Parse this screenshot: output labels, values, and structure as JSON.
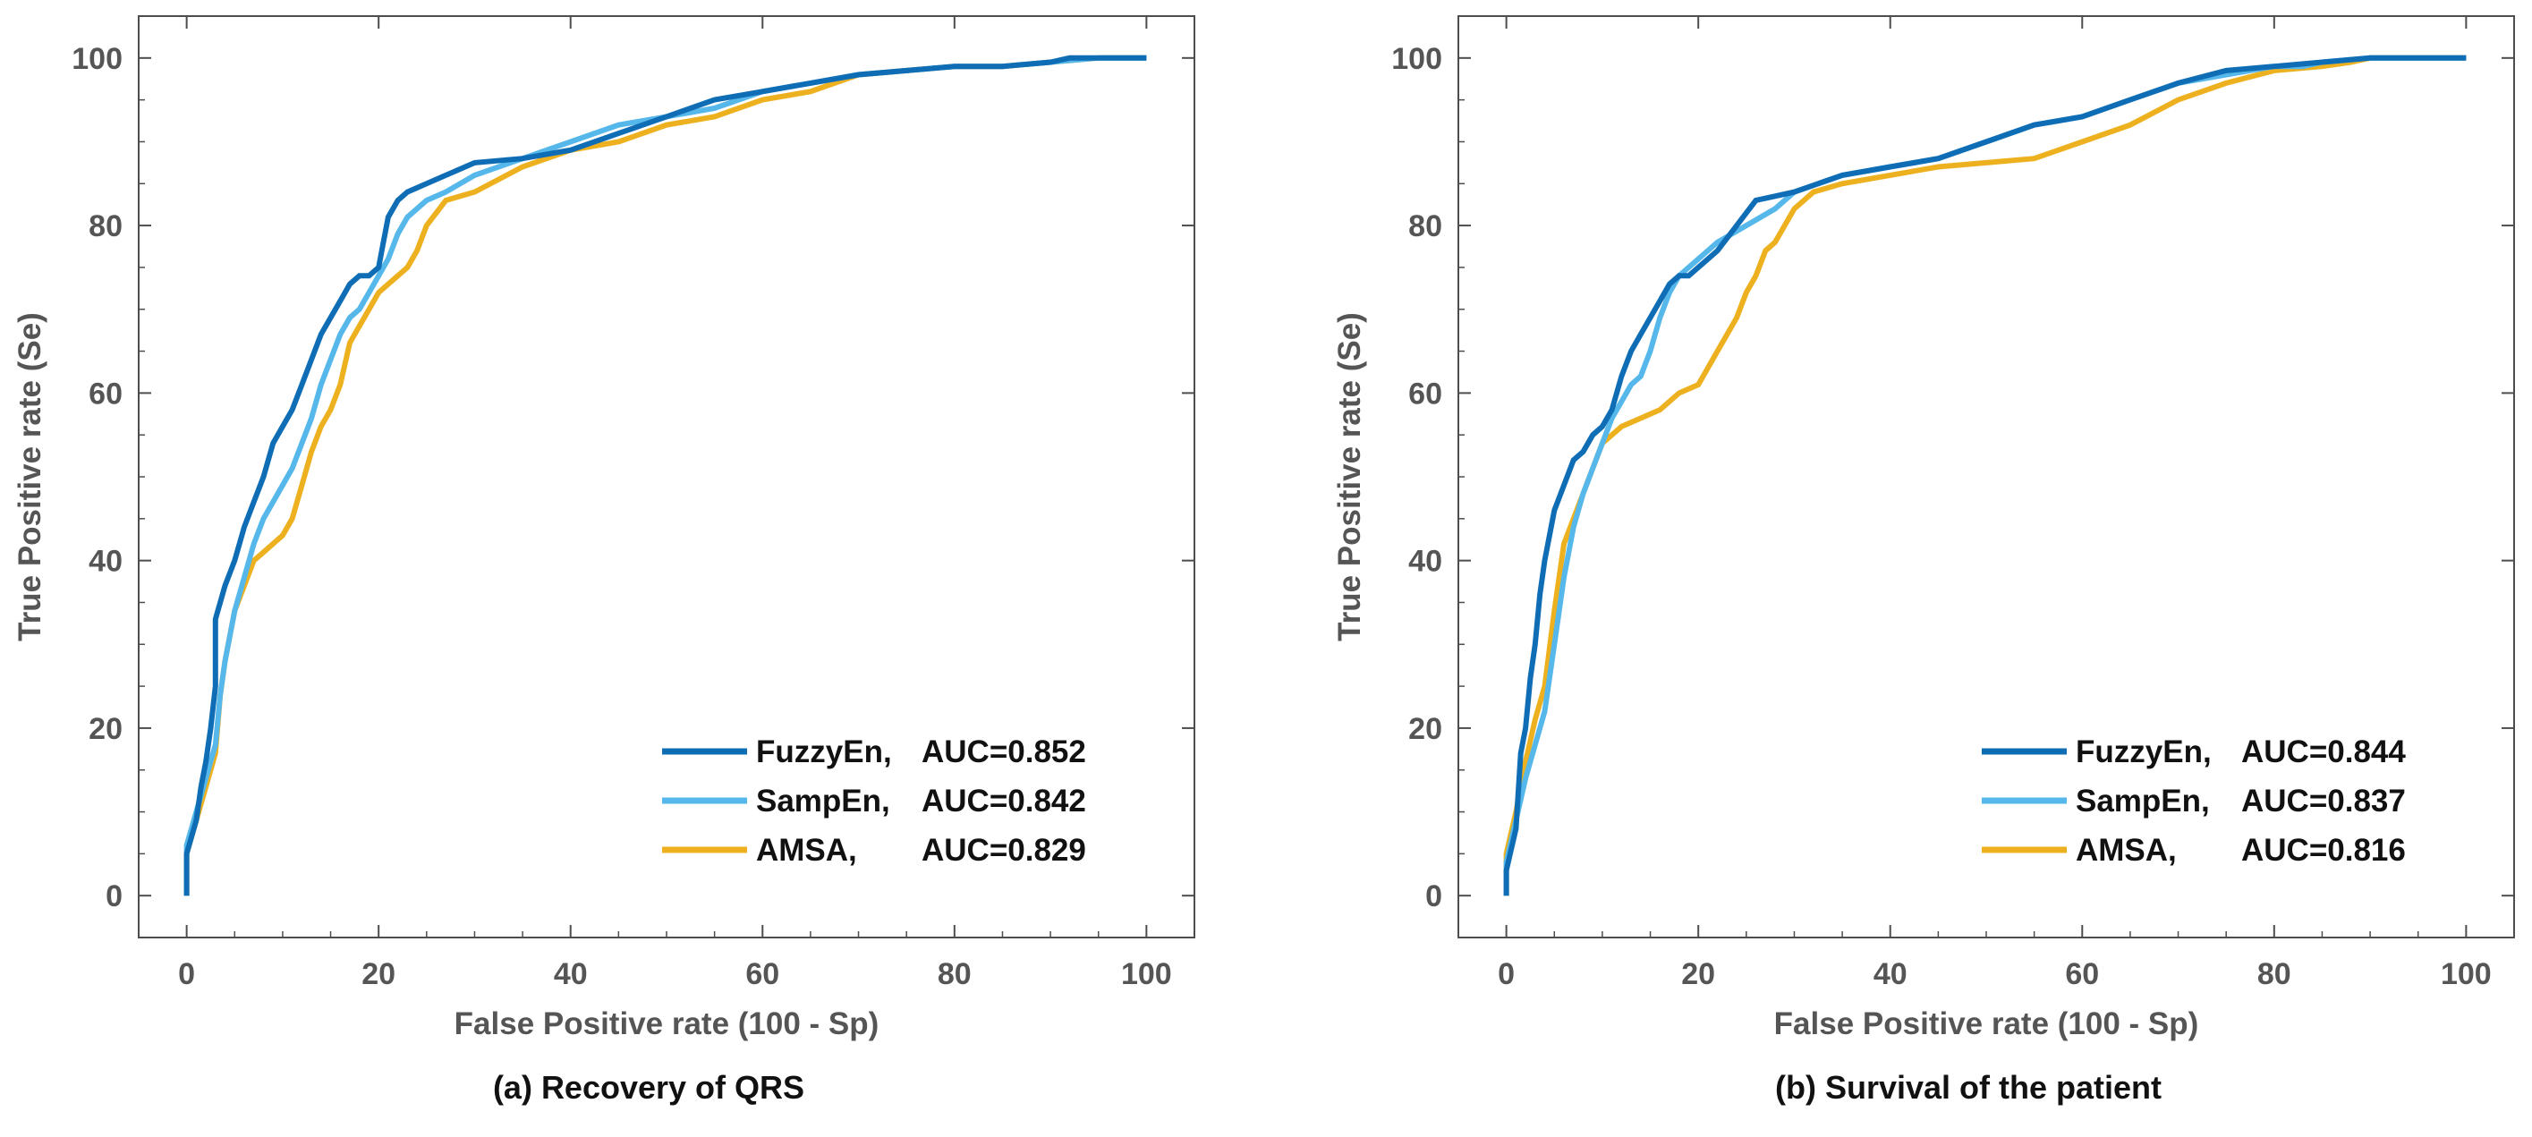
{
  "chart_data": [
    {
      "type": "line",
      "caption": "(a) Recovery of QRS",
      "xlabel": "False Positive rate (100 - Sp)",
      "ylabel": "True Positive rate (Se)",
      "xlim": [
        -5,
        105
      ],
      "ylim": [
        -5,
        105
      ],
      "xticks": [
        0,
        20,
        40,
        60,
        80,
        100
      ],
      "yticks": [
        0,
        20,
        40,
        60,
        80,
        100
      ],
      "grid": false,
      "legend_position": "bottom-right",
      "series": [
        {
          "name": "FuzzyEn",
          "auc": "AUC=0.852",
          "color": "#0f6db5",
          "x": [
            0,
            0,
            1,
            1.5,
            2,
            2.5,
            3,
            3,
            4,
            5,
            6,
            7,
            8,
            9,
            10,
            11,
            12,
            13,
            14,
            15,
            16,
            17,
            18,
            19,
            20,
            20.5,
            21,
            22,
            23,
            25,
            27,
            30,
            35,
            40,
            45,
            50,
            55,
            60,
            65,
            70,
            75,
            80,
            85,
            90,
            92,
            95,
            100
          ],
          "y": [
            0,
            5,
            9,
            13,
            16,
            20,
            25,
            33,
            37,
            40,
            44,
            47,
            50,
            54,
            56,
            58,
            61,
            64,
            67,
            69,
            71,
            73,
            74,
            74,
            75,
            78,
            81,
            83,
            84,
            85,
            86,
            87.5,
            88,
            89,
            91,
            93,
            95,
            96,
            97,
            98,
            98.5,
            99,
            99,
            99.5,
            100,
            100,
            100
          ]
        },
        {
          "name": "SampEn",
          "auc": "AUC=0.842",
          "color": "#55b7ea",
          "x": [
            0,
            0,
            1,
            2,
            3,
            3.5,
            4,
            5,
            6,
            7,
            8,
            9,
            10,
            11,
            12,
            13,
            14,
            15,
            16,
            17,
            18,
            19,
            20,
            21,
            22,
            23,
            25,
            27,
            30,
            35,
            40,
            45,
            50,
            55,
            60,
            65,
            70,
            75,
            80,
            85,
            90,
            95,
            100
          ],
          "y": [
            0,
            6,
            10,
            14,
            18,
            24,
            28,
            34,
            38,
            42,
            45,
            47,
            49,
            51,
            54,
            57,
            61,
            64,
            67,
            69,
            70,
            72,
            74,
            76,
            79,
            81,
            83,
            84,
            86,
            88,
            90,
            92,
            93,
            94,
            96,
            97,
            98,
            98.5,
            99,
            99,
            99.5,
            100,
            100
          ]
        },
        {
          "name": "AMSA",
          "auc": "AUC=0.829",
          "color": "#edb120",
          "x": [
            0,
            0,
            1,
            2,
            3,
            3.5,
            4,
            5,
            6,
            7,
            8,
            9,
            10,
            11,
            12,
            13,
            14,
            15,
            16,
            17,
            18,
            19,
            20,
            21,
            22,
            23,
            24,
            25,
            27,
            30,
            35,
            40,
            45,
            50,
            55,
            60,
            65,
            70,
            75,
            80,
            85,
            90,
            95,
            100
          ],
          "y": [
            0,
            5,
            9,
            13,
            17,
            24,
            28,
            34,
            37,
            40,
            41,
            42,
            43,
            45,
            49,
            53,
            56,
            58,
            61,
            66,
            68,
            70,
            72,
            73,
            74,
            75,
            77,
            80,
            83,
            84,
            87,
            89,
            90,
            92,
            93,
            95,
            96,
            98,
            98.5,
            99,
            99,
            99.5,
            100,
            100
          ]
        }
      ]
    },
    {
      "type": "line",
      "caption": "(b) Survival of the patient",
      "xlabel": "False Positive rate (100 - Sp)",
      "ylabel": "True Positive rate (Se)",
      "xlim": [
        -5,
        105
      ],
      "ylim": [
        -5,
        105
      ],
      "xticks": [
        0,
        20,
        40,
        60,
        80,
        100
      ],
      "yticks": [
        0,
        20,
        40,
        60,
        80,
        100
      ],
      "grid": false,
      "legend_position": "bottom-right",
      "series": [
        {
          "name": "FuzzyEn",
          "auc": "AUC=0.844",
          "color": "#0f6db5",
          "x": [
            0,
            0,
            1,
            1.5,
            2,
            2.5,
            3,
            3.5,
            4,
            4.5,
            5,
            6,
            7,
            8,
            9,
            10,
            11,
            12,
            13,
            14,
            15,
            16,
            17,
            18,
            19,
            20,
            22,
            24,
            26,
            28,
            30,
            35,
            40,
            45,
            50,
            55,
            60,
            65,
            70,
            75,
            80,
            85,
            90,
            95,
            100
          ],
          "y": [
            0,
            3,
            8,
            17,
            20,
            26,
            30,
            36,
            40,
            43,
            46,
            49,
            52,
            53,
            55,
            56,
            58,
            62,
            65,
            67,
            69,
            71,
            73,
            74,
            74,
            75,
            77,
            80,
            83,
            83.5,
            84,
            86,
            87,
            88,
            90,
            92,
            93,
            95,
            97,
            98.5,
            99,
            99.5,
            100,
            100,
            100
          ]
        },
        {
          "name": "SampEn",
          "auc": "AUC=0.837",
          "color": "#55b7ea",
          "x": [
            0,
            0,
            1,
            2,
            3,
            4,
            5,
            6,
            7,
            8,
            9,
            10,
            11,
            12,
            13,
            14,
            15,
            16,
            17,
            18,
            19,
            20,
            22,
            25,
            28,
            30,
            35,
            40,
            45,
            50,
            55,
            60,
            65,
            70,
            75,
            80,
            83,
            85,
            90,
            95,
            100
          ],
          "y": [
            0,
            4,
            9,
            14,
            18,
            22,
            30,
            38,
            44,
            48,
            51,
            54,
            57,
            59,
            61,
            62,
            65,
            69,
            72,
            74,
            75,
            76,
            78,
            80,
            82,
            84,
            86,
            87,
            88,
            90,
            92,
            93,
            95,
            97,
            98,
            99,
            99,
            99.5,
            100,
            100,
            100
          ]
        },
        {
          "name": "AMSA",
          "auc": "AUC=0.816",
          "color": "#edb120",
          "x": [
            0,
            0,
            1,
            2,
            3,
            4,
            5,
            6,
            7,
            8,
            9,
            10,
            12,
            14,
            16,
            18,
            20,
            21,
            22,
            23,
            24,
            25,
            26,
            27,
            28,
            29,
            30,
            32,
            35,
            40,
            45,
            50,
            55,
            60,
            65,
            70,
            75,
            80,
            85,
            88,
            90,
            95,
            100
          ],
          "y": [
            0,
            5,
            10,
            16,
            21,
            25,
            34,
            42,
            45,
            48,
            51,
            54,
            56,
            57,
            58,
            60,
            61,
            63,
            65,
            67,
            69,
            72,
            74,
            77,
            78,
            80,
            82,
            84,
            85,
            86,
            87,
            87.5,
            88,
            90,
            92,
            95,
            97,
            98.5,
            99,
            99.5,
            100,
            100,
            100
          ]
        }
      ]
    }
  ],
  "legend": {
    "line_label": "AUC"
  }
}
